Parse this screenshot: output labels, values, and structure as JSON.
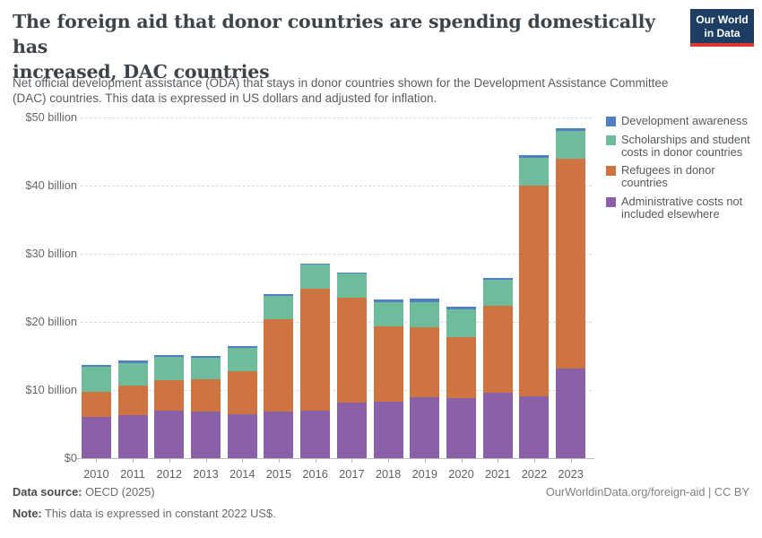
{
  "header": {
    "title": "The foreign aid that donor countries are spending domestically has increased, DAC countries",
    "title_lines": [
      "The foreign aid that donor countries are spending domestically has",
      "increased, DAC countries"
    ],
    "subtitle": "Net official development assistance (ODA) that stays in donor countries shown for the Development Assistance Committee (DAC) countries. This data is expressed in US dollars and adjusted for inflation.",
    "subtitle_lines": [
      "Net official development assistance (ODA) that stays in donor countries shown for the Development Assistance Committee",
      "(DAC) countries. This data is expressed in US dollars and adjusted for inflation."
    ]
  },
  "logo": {
    "line1": "Our World",
    "line2": "in Data",
    "bg_color": "#1d3d63",
    "accent_color": "#dc3a31"
  },
  "footer": {
    "source_label": "Data source:",
    "source_value": "OECD (2025)",
    "note_label": "Note:",
    "note_value": "This data is expressed in constant 2022 US$.",
    "link": "OurWorldinData.org/foreign-aid | CC BY"
  },
  "chart_data": {
    "type": "bar",
    "stacked": true,
    "title": "The foreign aid that donor countries are spending domestically has increased, DAC countries",
    "units": "billion US$ (constant 2022 US$)",
    "categories": [
      "2010",
      "2011",
      "2012",
      "2013",
      "2014",
      "2015",
      "2016",
      "2017",
      "2018",
      "2019",
      "2020",
      "2021",
      "2022",
      "2023"
    ],
    "series": [
      {
        "name": "Development awareness",
        "color": "#527ec2",
        "values": [
          0.3,
          0.4,
          0.3,
          0.3,
          0.3,
          0.3,
          0.2,
          0.2,
          0.4,
          0.5,
          0.4,
          0.3,
          0.4,
          0.4
        ]
      },
      {
        "name": "Scholarships and student costs in donor countries",
        "color": "#6fbc9c",
        "values": [
          3.6,
          3.3,
          3.4,
          3.1,
          3.4,
          3.4,
          3.5,
          3.5,
          3.5,
          3.7,
          4.0,
          3.8,
          4.1,
          4.0
        ]
      },
      {
        "name": "Refugees in donor countries",
        "color": "#ce7440",
        "values": [
          3.7,
          4.3,
          4.5,
          4.8,
          6.3,
          13.5,
          17.9,
          15.4,
          11.1,
          10.2,
          9.0,
          12.8,
          30.9,
          30.8
        ]
      },
      {
        "name": "Administrative costs not included elsewhere",
        "color": "#8a60a9",
        "values": [
          6.1,
          6.3,
          7.0,
          6.8,
          6.5,
          6.9,
          7.0,
          8.2,
          8.3,
          9.0,
          8.8,
          9.6,
          9.1,
          13.2
        ]
      }
    ],
    "stack_bottom_to_top": [
      "Administrative costs not included elsewhere",
      "Refugees in donor countries",
      "Scholarships and student costs in donor countries",
      "Development awareness"
    ],
    "totals": [
      13.7,
      14.3,
      15.2,
      15.0,
      16.5,
      24.1,
      28.6,
      27.3,
      23.3,
      23.4,
      22.2,
      26.5,
      44.5,
      48.4
    ],
    "xlabel": "",
    "ylabel": "",
    "ylim": [
      0,
      50
    ],
    "yticks": [
      {
        "value": 0,
        "label": "$0"
      },
      {
        "value": 10,
        "label": "$10 billion"
      },
      {
        "value": 20,
        "label": "$20 billion"
      },
      {
        "value": 30,
        "label": "$30 billion"
      },
      {
        "value": 40,
        "label": "$40 billion"
      },
      {
        "value": 50,
        "label": "$50 billion"
      }
    ],
    "grid": "horizontal-dashed",
    "legend_position": "right"
  }
}
